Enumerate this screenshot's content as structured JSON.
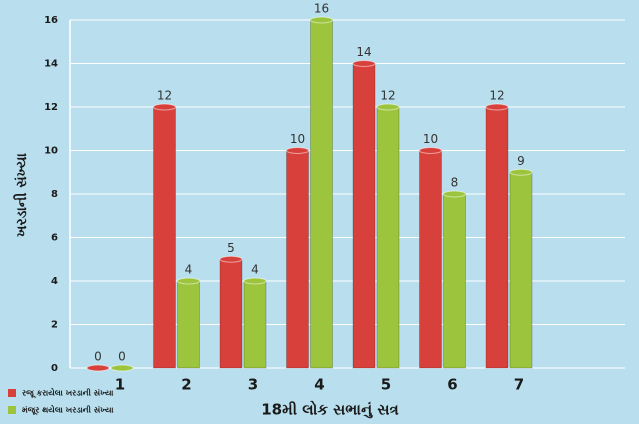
{
  "chart_data": {
    "type": "bar",
    "x_label": "18મી લોક સભાનું સત્ર",
    "y_label": "ખરડાની સંખ્યા",
    "categories": [
      "1",
      "2",
      "3",
      "4",
      "5",
      "6",
      "7"
    ],
    "series": [
      {
        "name": "રજૂ કરાયેલા ખરડાની સંખ્યા",
        "color": "#d8413b",
        "values": [
          0,
          12,
          5,
          10,
          14,
          10,
          12
        ]
      },
      {
        "name": "મંજૂર થયેલા ખરડાની સંખ્યા",
        "color": "#9cc53d",
        "values": [
          0,
          4,
          4,
          16,
          12,
          8,
          9
        ]
      }
    ],
    "ylim": [
      0,
      16
    ],
    "yticks": [
      0,
      2,
      4,
      6,
      8,
      10,
      12,
      14,
      16
    ],
    "grid": true,
    "legend": "bottom-left"
  }
}
